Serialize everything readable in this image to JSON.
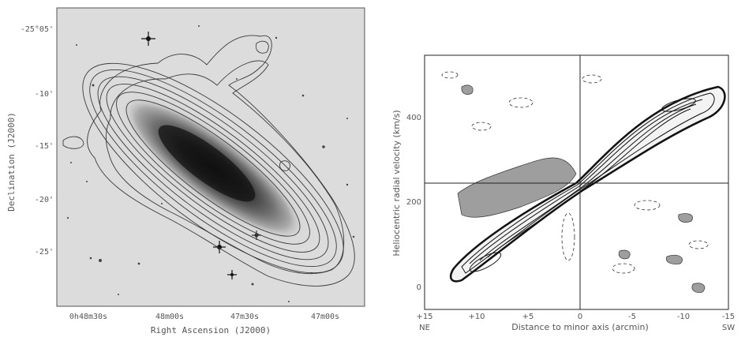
{
  "left_panel": {
    "y_ticks": [
      "-25°05'",
      "-10'",
      "-15'",
      "-20'",
      "-25'"
    ],
    "x_ticks": [
      "0h48m30s",
      "48m00s",
      "47m30s",
      "47m00s"
    ],
    "ylabel": "Declination (J2000)",
    "xlabel": "Right Ascension (J2000)"
  },
  "right_panel": {
    "y_ticks": [
      "400",
      "200",
      "0"
    ],
    "x_ticks": [
      "+15",
      "+10",
      "+5",
      "0",
      "-5",
      "-10",
      "-15"
    ],
    "x_side_labels": {
      "left": "NE",
      "right": "SW"
    },
    "ylabel": "Heliocentric radial velocity (km/s)",
    "xlabel": "Distance to minor axis (arcmin)",
    "crosshair": {
      "x_arcmin": 0,
      "y_kms": 243
    }
  },
  "colors": {
    "image_dark": "#111111",
    "image_light": "#d9d9d9",
    "contour": "#333333"
  }
}
